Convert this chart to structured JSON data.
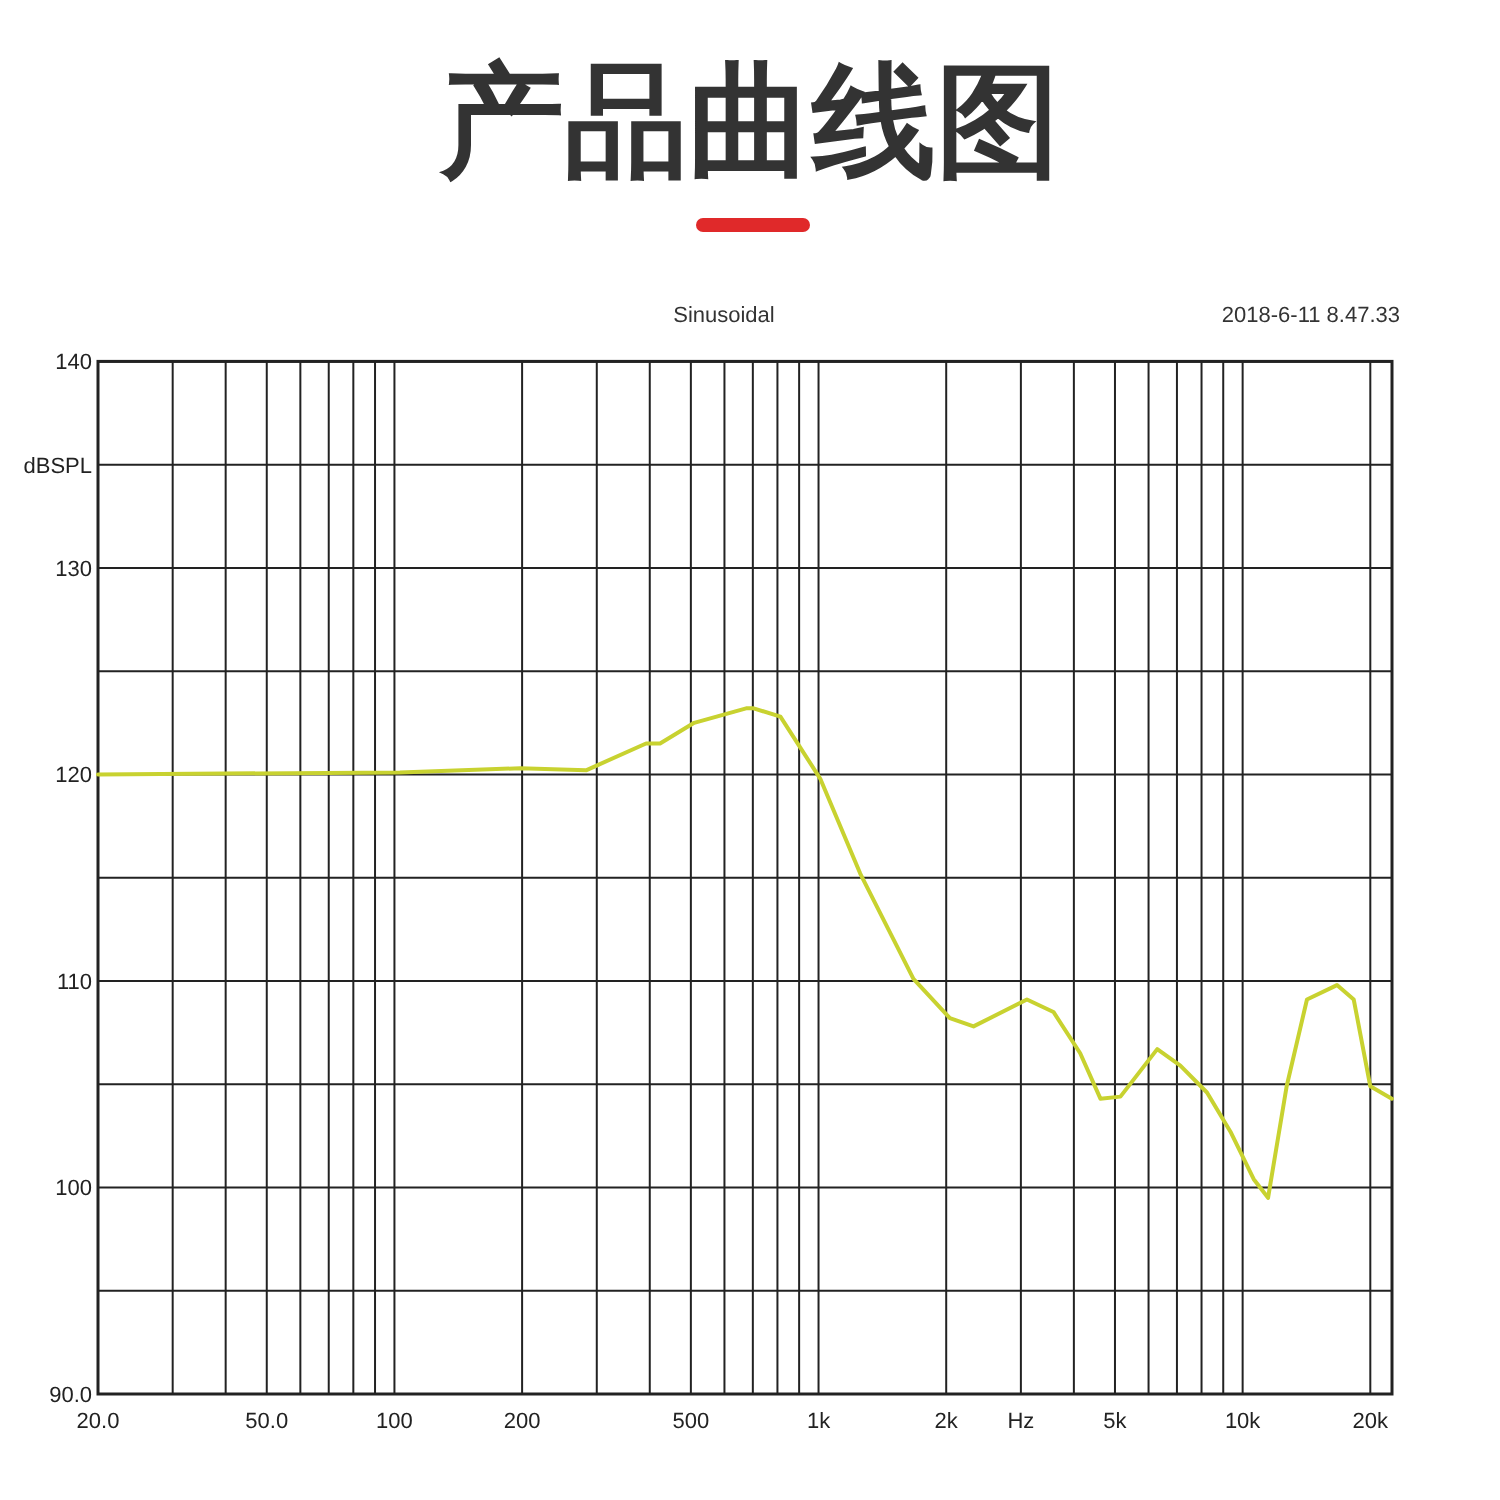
{
  "chart_data": {
    "type": "line",
    "title": "产品曲线图",
    "subtitle": "Sinusoidal",
    "annotations": [
      "2018-6-11 8.47.33"
    ],
    "log": "x",
    "grid": true,
    "marker": "none",
    "line_style": "solid",
    "xlim": [
      20,
      22500
    ],
    "ylim": [
      90,
      140
    ],
    "xticks": [
      {
        "value": 20,
        "label": "20.0"
      },
      {
        "value": 30,
        "label": null
      },
      {
        "value": 40,
        "label": null
      },
      {
        "value": 50,
        "label": "50.0"
      },
      {
        "value": 60,
        "label": null
      },
      {
        "value": 70,
        "label": null
      },
      {
        "value": 80,
        "label": null
      },
      {
        "value": 90,
        "label": null
      },
      100,
      200,
      {
        "value": 300,
        "label": null
      },
      {
        "value": 400,
        "label": null
      },
      500,
      {
        "value": 600,
        "label": null
      },
      {
        "value": 700,
        "label": null
      },
      {
        "value": 800,
        "label": null
      },
      {
        "value": 900,
        "label": null
      },
      {
        "value": 1000,
        "label": "1k"
      },
      {
        "value": 2000,
        "label": "2k"
      },
      {
        "value": 3000,
        "label": "Hz"
      },
      {
        "value": 4000,
        "label": null
      },
      {
        "value": 5000,
        "label": "5k"
      },
      {
        "value": 6000,
        "label": null
      },
      {
        "value": 7000,
        "label": null
      },
      {
        "value": 8000,
        "label": null
      },
      {
        "value": 9000,
        "label": null
      },
      {
        "value": 10000,
        "label": "10k"
      },
      {
        "value": 20000,
        "label": "20k"
      }
    ],
    "yticks": [
      {
        "value": 90,
        "label": "90.0"
      },
      {
        "value": 95,
        "label": null
      },
      100,
      {
        "value": 105,
        "label": null
      },
      110,
      {
        "value": 115,
        "label": null
      },
      120,
      {
        "value": 125,
        "label": null
      },
      130,
      {
        "value": 135,
        "label": "dBSPL"
      },
      140
    ],
    "series": [
      {
        "color": "#c8d230",
        "x": [
          20,
          103,
          198,
          283,
          392,
          423,
          509,
          675,
          703,
          813,
          1009,
          1254,
          1674,
          2040,
          2320,
          3100,
          3580,
          4140,
          4620,
          5150,
          6290,
          7130,
          8240,
          9360,
          10620,
          11480,
          12700,
          14180,
          16690,
          18280,
          20000,
          22480
        ],
        "values": [
          120.0,
          120.1,
          120.3,
          120.2,
          121.5,
          121.5,
          122.5,
          123.2,
          123.2,
          122.8,
          119.8,
          115.2,
          110.1,
          108.2,
          107.8,
          109.1,
          108.5,
          106.5,
          104.3,
          104.4,
          106.7,
          105.9,
          104.6,
          102.7,
          100.4,
          99.5,
          104.9,
          109.1,
          109.8,
          109.1,
          104.9,
          104.3
        ]
      }
    ]
  }
}
